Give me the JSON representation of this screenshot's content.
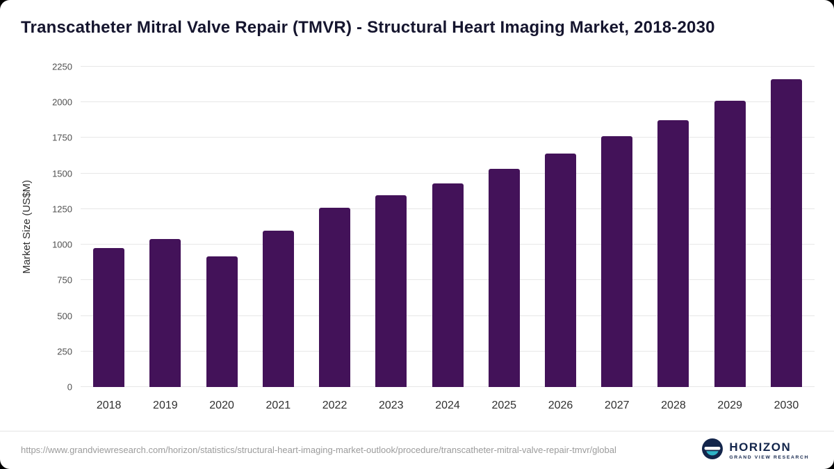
{
  "chart_data": {
    "type": "bar",
    "title": "Transcatheter Mitral Valve Repair (TMVR) - Structural Heart Imaging Market, 2018-2030",
    "categories": [
      "2018",
      "2019",
      "2020",
      "2021",
      "2022",
      "2023",
      "2024",
      "2025",
      "2026",
      "2027",
      "2028",
      "2029",
      "2030"
    ],
    "values": [
      975,
      1040,
      920,
      1100,
      1260,
      1345,
      1430,
      1535,
      1640,
      1760,
      1875,
      2010,
      2160
    ],
    "xlabel": "",
    "ylabel": "Market Size (US$M)",
    "ylim": [
      0,
      2250
    ],
    "yticks": [
      0,
      250,
      500,
      750,
      1000,
      1250,
      1500,
      1750,
      2000,
      2250
    ],
    "grid": true,
    "legend": "none",
    "bar_color": "#431259"
  },
  "footer": {
    "source_url": "https://www.grandviewresearch.com/horizon/statistics/structural-heart-imaging-market-outlook/procedure/transcatheter-mitral-valve-repair-tmvr/global",
    "logo": {
      "name": "HORIZON",
      "subtitle": "GRAND VIEW RESEARCH"
    }
  },
  "colors": {
    "bar": "#431259",
    "title_text": "#15152e",
    "gridline": "#e7e7e7",
    "logo_navy": "#13254b",
    "logo_teal": "#2fb4c7"
  }
}
